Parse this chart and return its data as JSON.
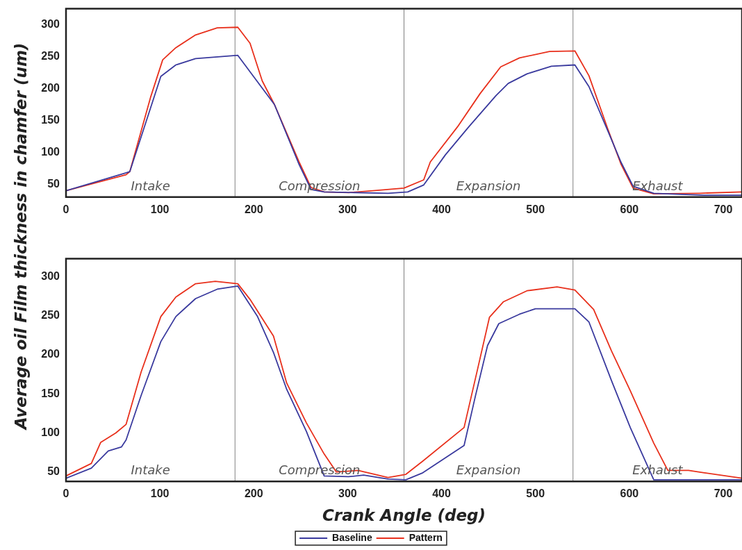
{
  "chart_data": [
    {
      "type": "line",
      "ylabel": "Average oil Film thickness in chamfer (um)",
      "xlim": [
        0,
        720
      ],
      "xticks": [
        0,
        100,
        200,
        300,
        400,
        500,
        600,
        700
      ],
      "ylim": [
        30,
        325
      ],
      "yticks": [
        50,
        100,
        150,
        200,
        250,
        300
      ],
      "grid": false,
      "legend": false,
      "marker": "none",
      "line_style": "solid",
      "series": [
        {
          "color": "#3a3a9e",
          "x": [
            0,
            64,
            68,
            101,
            117,
            138,
            183,
            222,
            248,
            261,
            275,
            343,
            364,
            381,
            404,
            429,
            458,
            471,
            491,
            517,
            542,
            557,
            577,
            591,
            604,
            626,
            680,
            720
          ],
          "values": [
            40,
            68,
            70,
            219,
            237,
            247,
            252,
            175,
            82,
            42,
            38,
            36,
            38,
            49,
            96,
            140,
            189,
            208,
            223,
            235,
            237,
            203,
            134,
            85,
            47,
            36,
            33,
            33
          ]
        },
        {
          "color": "#e8301c",
          "x": [
            0,
            64,
            68,
            90,
            103,
            117,
            138,
            161,
            183,
            196,
            209,
            222,
            248,
            261,
            275,
            301,
            327,
            360,
            381,
            388,
            417,
            441,
            463,
            483,
            515,
            542,
            557,
            577,
            591,
            604,
            626,
            675,
            720
          ],
          "values": [
            40,
            65,
            70,
            186,
            245,
            264,
            284,
            295,
            296,
            271,
            212,
            175,
            86,
            45,
            38,
            37,
            40,
            44,
            57,
            85,
            140,
            192,
            234,
            248,
            258,
            259,
            220,
            137,
            82,
            44,
            35,
            36,
            38
          ]
        }
      ],
      "ref_lines": [
        {
          "axis": "x",
          "value": 180,
          "color": "#808080"
        },
        {
          "axis": "x",
          "value": 360,
          "color": "#808080"
        },
        {
          "axis": "x",
          "value": 540,
          "color": "#808080"
        }
      ],
      "annotations": [
        "Intake",
        "Compression",
        "Expansion",
        "Exhaust"
      ]
    },
    {
      "type": "line",
      "xlabel": "Crank Angle (deg)",
      "xlim": [
        0,
        720
      ],
      "xticks": [
        0,
        100,
        200,
        300,
        400,
        500,
        600,
        700
      ],
      "ylim": [
        38,
        323
      ],
      "yticks": [
        50,
        100,
        150,
        200,
        250,
        300
      ],
      "grid": false,
      "legend": "bottom",
      "marker": "none",
      "line_style": "solid",
      "series": [
        {
          "name": "Baseline",
          "color": "#3a3a9e",
          "x": [
            0,
            27,
            45,
            59,
            64,
            80,
            101,
            117,
            138,
            161,
            183,
            204,
            221,
            235,
            256,
            275,
            301,
            317,
            343,
            362,
            380,
            424,
            436,
            449,
            461,
            483,
            500,
            542,
            557,
            581,
            601,
            626,
            680,
            720
          ],
          "values": [
            42,
            55,
            77,
            82,
            91,
            148,
            217,
            249,
            272,
            284,
            288,
            249,
            203,
            156,
            102,
            45,
            44,
            46,
            41,
            40,
            49,
            84,
            147,
            212,
            240,
            252,
            259,
            259,
            242,
            167,
            107,
            40,
            40,
            40
          ]
        },
        {
          "name": "Pattern",
          "color": "#e8301c",
          "x": [
            0,
            27,
            37,
            53,
            64,
            80,
            101,
            117,
            138,
            159,
            183,
            196,
            221,
            235,
            256,
            275,
            288,
            311,
            343,
            362,
            380,
            424,
            439,
            451,
            466,
            491,
            523,
            542,
            562,
            581,
            601,
            626,
            641,
            663,
            680,
            720
          ],
          "values": [
            45,
            61,
            88,
            100,
            111,
            178,
            249,
            274,
            291,
            294,
            291,
            271,
            224,
            164,
            113,
            73,
            50,
            52,
            43,
            47,
            64,
            107,
            185,
            248,
            268,
            282,
            287,
            283,
            258,
            205,
            154,
            87,
            52,
            52,
            49,
            42
          ]
        }
      ],
      "ref_lines": [
        {
          "axis": "x",
          "value": 180,
          "color": "#808080"
        },
        {
          "axis": "x",
          "value": 360,
          "color": "#808080"
        },
        {
          "axis": "x",
          "value": 540,
          "color": "#808080"
        }
      ],
      "annotations": [
        "Intake",
        "Compression",
        "Expansion",
        "Exhaust"
      ]
    }
  ]
}
